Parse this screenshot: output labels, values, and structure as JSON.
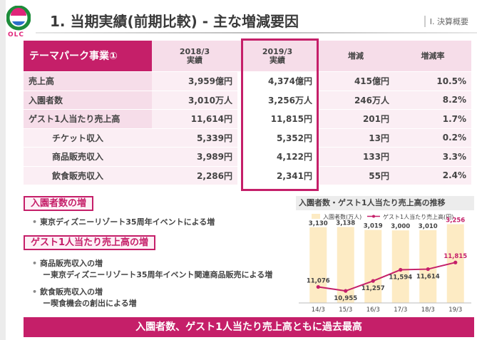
{
  "header": {
    "logo_text": "OLC",
    "title": "1. 当期実績(前期比較) - 主な増減要因",
    "section": "Ⅰ. 決算概要"
  },
  "table": {
    "corner": "テーマパーク事業①",
    "columns": [
      {
        "line1": "2018/3",
        "line2": "実績"
      },
      {
        "line1": "2019/3",
        "line2": "実績"
      },
      {
        "line1": "増減",
        "line2": ""
      },
      {
        "line1": "増減率",
        "line2": ""
      }
    ],
    "rows": [
      {
        "label": "売上高",
        "prev": "3,959億円",
        "curr": "4,374億円",
        "diff": "415億円",
        "rate": "10.5%"
      },
      {
        "label": "入園者数",
        "prev": "3,010万人",
        "curr": "3,256万人",
        "diff": "246万人",
        "rate": "8.2%"
      },
      {
        "label": "ゲスト1人当たり売上高",
        "prev": "11,614円",
        "curr": "11,815円",
        "diff": "201円",
        "rate": "1.7%"
      },
      {
        "label": "チケット収入",
        "prev": "5,339円",
        "curr": "5,352円",
        "diff": "13円",
        "rate": "0.2%"
      },
      {
        "label": "商品販売収入",
        "prev": "3,989円",
        "curr": "4,122円",
        "diff": "133円",
        "rate": "3.3%"
      },
      {
        "label": "飲食販売収入",
        "prev": "2,286円",
        "curr": "2,341円",
        "diff": "55円",
        "rate": "2.4%"
      }
    ]
  },
  "notes": {
    "attendance_heading": "入園者数の増",
    "attendance_bullet": "東京ディズニーリゾート35周年イベントによる増",
    "per_guest_heading": "ゲスト1人当たり売上高の増",
    "merch_bullet": "商品販売収入の増",
    "merch_sub": "ー東京ディズニーリゾート35周年イベント関連商品販売による増",
    "food_bullet": "飲食販売収入の増",
    "food_sub": "ー喫食機会の創出による増"
  },
  "footer": "入園者数、ゲスト1人当たり売上高ともに過去最高",
  "chart_data": {
    "type": "bar",
    "title": "入園者数・ゲスト1人当たり売上高の推移",
    "categories": [
      "14/3",
      "15/3",
      "16/3",
      "17/3",
      "18/3",
      "19/3"
    ],
    "series": [
      {
        "name": "入園者数(万人)",
        "type": "bar",
        "values": [
          3130,
          3138,
          3019,
          3000,
          3010,
          3256
        ],
        "labels": [
          "3,130",
          "3,138",
          "3,019",
          "3,000",
          "3,010",
          "3,256"
        ],
        "color": "#fdebc4"
      },
      {
        "name": "ゲスト1人当たり売上高(円)",
        "type": "line",
        "values": [
          11076,
          10955,
          11257,
          11594,
          11614,
          11815
        ],
        "labels": [
          "11,076",
          "10,955",
          "11,257",
          "11,594",
          "11,614",
          "11,815"
        ],
        "color": "#c51f69"
      }
    ],
    "highlight_color": "#c51f69",
    "legend_position": "top"
  }
}
